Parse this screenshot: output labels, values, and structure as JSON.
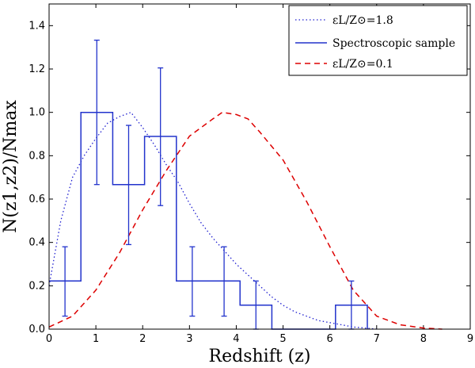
{
  "chart_data": {
    "type": "line",
    "title": "",
    "xlabel": "Redshift (z)",
    "ylabel": "N(z1,z2)/Nmax",
    "xlim": [
      0,
      9
    ],
    "ylim": [
      0,
      1.5
    ],
    "xticks": [
      "0",
      "1",
      "2",
      "3",
      "4",
      "5",
      "6",
      "7",
      "8",
      "9"
    ],
    "yticks": [
      "0.0",
      "0.2",
      "0.4",
      "0.6",
      "0.8",
      "1.0",
      "1.2",
      "1.4"
    ],
    "grid": false,
    "legend_position": "top-right",
    "series": [
      {
        "name": "εL/Z⊙=1.8",
        "legend_label": "εL/Z⊙=1.8",
        "style": "dotted",
        "color": "#2020d0",
        "x": [
          0,
          0.25,
          0.5,
          0.75,
          1.0,
          1.25,
          1.5,
          1.75,
          2.0,
          2.25,
          2.5,
          2.75,
          3.0,
          3.25,
          3.5,
          3.75,
          4.0,
          4.25,
          4.5,
          4.75,
          5.0,
          5.25,
          5.5,
          5.75,
          6.0,
          6.25,
          6.5,
          6.75,
          7.0
        ],
        "y": [
          0.2,
          0.5,
          0.7,
          0.8,
          0.88,
          0.95,
          0.98,
          1.0,
          0.93,
          0.85,
          0.76,
          0.68,
          0.58,
          0.49,
          0.42,
          0.36,
          0.3,
          0.25,
          0.2,
          0.15,
          0.11,
          0.08,
          0.06,
          0.04,
          0.03,
          0.02,
          0.01,
          0.005,
          0.0
        ]
      },
      {
        "name": "Spectroscopic sample",
        "legend_label": "Spectroscopic sample",
        "style": "step",
        "color": "#2233cc",
        "bin_edges": [
          0,
          0.68,
          1.36,
          2.04,
          2.72,
          3.4,
          4.08,
          4.76,
          5.44,
          6.12,
          6.8
        ],
        "values": [
          0.222,
          1.0,
          0.667,
          0.889,
          0.222,
          0.222,
          0.111,
          0.0,
          0.0,
          0.111
        ],
        "errorbars": [
          {
            "x": 0.34,
            "y": 0.222,
            "low": 0.06,
            "high": 0.38
          },
          {
            "x": 1.02,
            "y": 1.0,
            "low": 0.667,
            "high": 1.333
          },
          {
            "x": 1.7,
            "y": 0.667,
            "low": 0.39,
            "high": 0.94
          },
          {
            "x": 2.38,
            "y": 0.889,
            "low": 0.57,
            "high": 1.205
          },
          {
            "x": 3.06,
            "y": 0.222,
            "low": 0.06,
            "high": 0.38
          },
          {
            "x": 3.74,
            "y": 0.222,
            "low": 0.06,
            "high": 0.38
          },
          {
            "x": 4.42,
            "y": 0.111,
            "low": 0.0,
            "high": 0.222
          },
          {
            "x": 6.46,
            "y": 0.111,
            "low": 0.0,
            "high": 0.222
          }
        ]
      },
      {
        "name": "εL/Z⊙=0.1",
        "legend_label": "εL/Z⊙=0.1",
        "style": "dashed",
        "color": "#dd0000",
        "x": [
          0,
          0.5,
          1.0,
          1.5,
          2.0,
          2.5,
          3.0,
          3.5,
          3.7,
          4.0,
          4.25,
          4.5,
          5.0,
          5.5,
          6.0,
          6.5,
          7.0,
          7.5,
          8.0,
          8.4
        ],
        "y": [
          0.01,
          0.06,
          0.18,
          0.35,
          0.55,
          0.73,
          0.89,
          0.97,
          1.0,
          0.99,
          0.97,
          0.91,
          0.78,
          0.59,
          0.38,
          0.18,
          0.06,
          0.02,
          0.005,
          0.0
        ]
      }
    ]
  }
}
